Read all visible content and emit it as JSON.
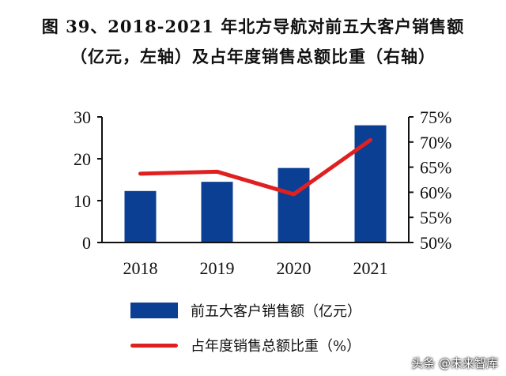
{
  "title_line1": "图 39、2018-2021 年北方导航对前五大客户销售额",
  "title_line2": "（亿元，左轴）及占年度销售总额比重（右轴）",
  "watermark": "头条 @未来智库",
  "chart_data": {
    "type": "bar+line",
    "categories": [
      "2018",
      "2019",
      "2020",
      "2021"
    ],
    "series": [
      {
        "name": "前五大客户销售额（亿元）",
        "type": "bar",
        "axis": "left",
        "color": "#0b3f94",
        "values": [
          12.3,
          14.5,
          17.8,
          28.0
        ]
      },
      {
        "name": "占年度销售总额比重（%）",
        "type": "line",
        "axis": "right",
        "color": "#e02020",
        "values": [
          63.7,
          64.1,
          59.6,
          70.4
        ]
      }
    ],
    "left_axis": {
      "ylim": [
        0,
        30
      ],
      "ticks": [
        "0",
        "10",
        "20",
        "30"
      ]
    },
    "right_axis": {
      "ylim": [
        50,
        75
      ],
      "ticks": [
        "50%",
        "55%",
        "60%",
        "65%",
        "70%",
        "75%"
      ]
    },
    "grid": false,
    "legend_position": "bottom"
  }
}
